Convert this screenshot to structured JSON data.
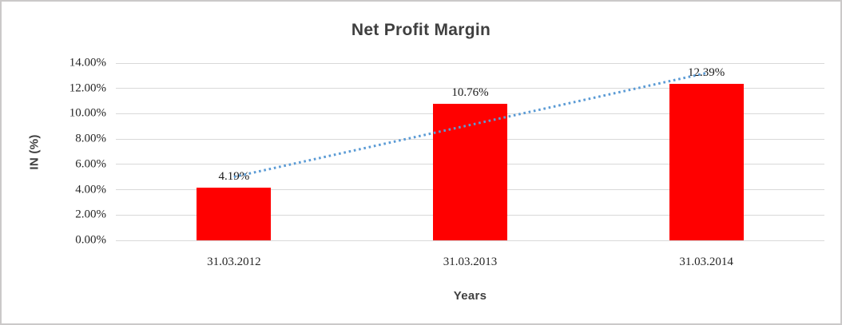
{
  "chart_data": {
    "type": "bar",
    "title": "Net Profit Margin",
    "categories": [
      "31.03.2012",
      "31.03.2013",
      "31.03.2014"
    ],
    "values": [
      4.19,
      10.76,
      12.39
    ],
    "data_labels": [
      "4.19%",
      "10.76%",
      "12.39%"
    ],
    "xlabel": "Years",
    "ylabel": "IN (%)",
    "ylim": [
      0,
      14
    ],
    "ytick_step": 2,
    "ytick_labels": [
      "0.00%",
      "2.00%",
      "4.00%",
      "6.00%",
      "8.00%",
      "10.00%",
      "12.00%",
      "14.00%"
    ],
    "grid": true,
    "legend": "none",
    "bar_color": "#ff0000",
    "gridline_color": "#d9d9d9",
    "title_color": "#3f3f3f",
    "trendline": {
      "type": "linear",
      "style": "dotted",
      "color": "#5b9bd5"
    }
  }
}
